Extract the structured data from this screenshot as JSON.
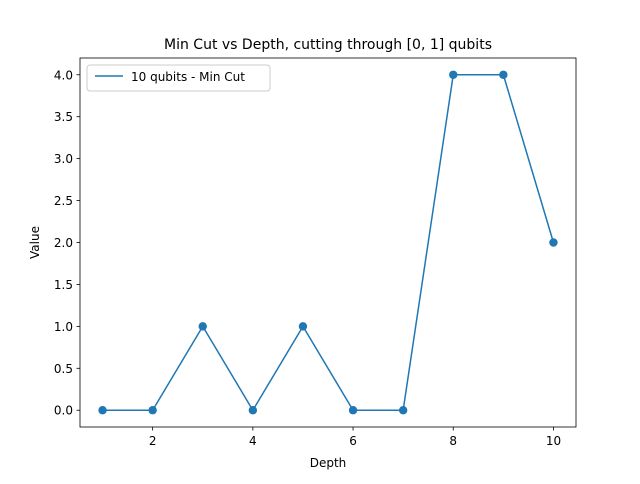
{
  "chart_data": {
    "type": "line",
    "title": "Min Cut vs Depth, cutting through [0, 1] qubits",
    "xlabel": "Depth",
    "ylabel": "Value",
    "xlim": [
      0.55,
      10.45
    ],
    "ylim": [
      -0.2,
      4.2
    ],
    "xticks": [
      2,
      4,
      6,
      8,
      10
    ],
    "yticks": [
      0.0,
      0.5,
      1.0,
      1.5,
      2.0,
      2.5,
      3.0,
      3.5,
      4.0
    ],
    "xtick_labels": [
      "2",
      "4",
      "6",
      "8",
      "10"
    ],
    "ytick_labels": [
      "0.0",
      "0.5",
      "1.0",
      "1.5",
      "2.0",
      "2.5",
      "3.0",
      "3.5",
      "4.0"
    ],
    "grid": false,
    "legend_position": "top-left",
    "series": [
      {
        "name": "10 qubits - Min Cut",
        "color": "#1f77b4",
        "marker": "circle",
        "x": [
          1,
          2,
          3,
          4,
          5,
          6,
          7,
          8,
          9,
          10
        ],
        "y": [
          0,
          0,
          1,
          0,
          1,
          0,
          0,
          4,
          4,
          2
        ]
      }
    ]
  }
}
